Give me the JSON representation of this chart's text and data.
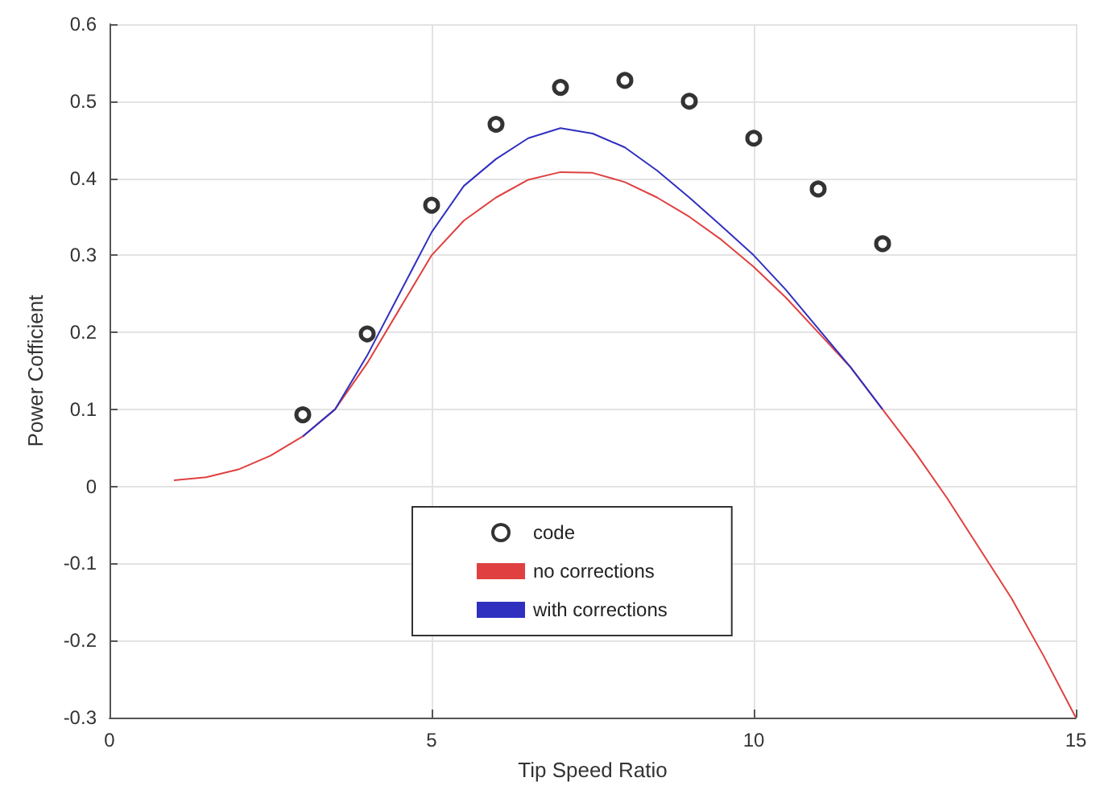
{
  "chart_data": {
    "type": "line",
    "xlabel": "Tip Speed Ratio",
    "ylabel": "Power Cofficient",
    "xlim": [
      0,
      15
    ],
    "xticks": [
      0,
      5,
      10,
      15
    ],
    "ylim": [
      -0.3,
      0.6
    ],
    "yticks": [
      -0.3,
      -0.2,
      -0.1,
      0,
      0.1,
      0.2,
      0.3,
      0.4,
      0.5,
      0.6
    ],
    "grid": true,
    "legend": "bottom",
    "series": [
      {
        "name": "code",
        "type": "scatter",
        "marker": "circle",
        "color": "#000000",
        "x": [
          3,
          4,
          5,
          6,
          7,
          8,
          9,
          10,
          11,
          12
        ],
        "values": [
          0.093,
          0.198,
          0.365,
          0.47,
          0.518,
          0.527,
          0.5,
          0.452,
          0.386,
          0.315
        ]
      },
      {
        "name": "no corrections",
        "color": "#e04040",
        "x": [
          1,
          1.5,
          2,
          2.5,
          3,
          3.5,
          4,
          4.5,
          5,
          5.5,
          6,
          6.5,
          7,
          7.5,
          8,
          8.5,
          9,
          9.5,
          10,
          10.5,
          11,
          11.5,
          12,
          12.5,
          13,
          13.5,
          14,
          14.5,
          15
        ],
        "values": [
          0.008,
          0.012,
          0.022,
          0.04,
          0.065,
          0.1,
          0.16,
          0.23,
          0.3,
          0.345,
          0.375,
          0.398,
          0.408,
          0.407,
          0.395,
          0.375,
          0.35,
          0.32,
          0.285,
          0.245,
          0.2,
          0.155,
          0.1,
          0.045,
          -0.015,
          -0.08,
          -0.145,
          -0.22,
          -0.3
        ]
      },
      {
        "name": "with corrections",
        "color": "#3030c0",
        "x": [
          3,
          3.5,
          4,
          4.5,
          5,
          5.5,
          6,
          6.5,
          7,
          7.5,
          8,
          8.5,
          9,
          9.5,
          10,
          10.5,
          11,
          11.5,
          12
        ],
        "values": [
          0.065,
          0.1,
          0.17,
          0.25,
          0.33,
          0.39,
          0.425,
          0.452,
          0.465,
          0.458,
          0.44,
          0.41,
          0.375,
          0.338,
          0.3,
          0.255,
          0.205,
          0.155,
          0.1
        ]
      }
    ]
  }
}
